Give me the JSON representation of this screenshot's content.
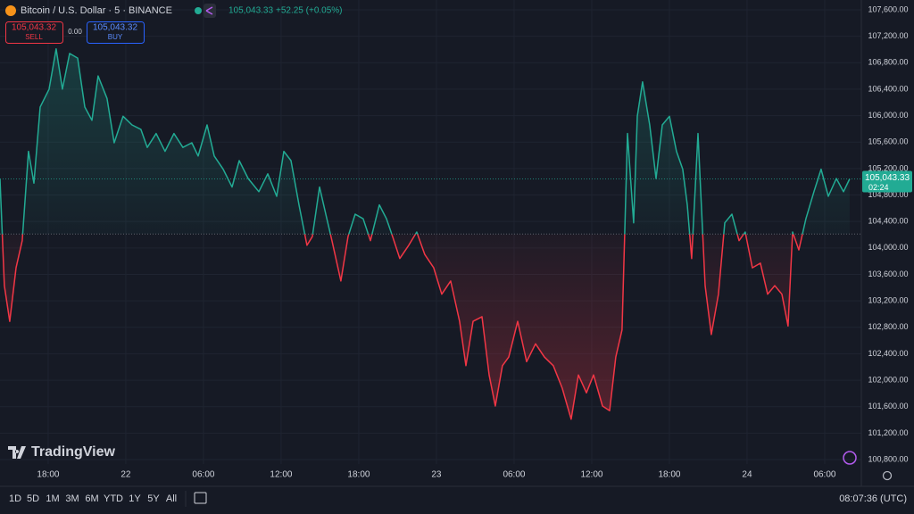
{
  "header": {
    "symbol": "Bitcoin / U.S. Dollar · 5 · BINANCE",
    "last": "105,043.33",
    "change": "+52.25 (+0.05%)"
  },
  "trade": {
    "sell_price": "105,043.32",
    "sell": "SELL",
    "spread": "0.00",
    "buy_price": "105,043.32",
    "buy": "BUY"
  },
  "chart_data": {
    "type": "baseline",
    "x": [
      -9.72,
      -9.38,
      -8.97,
      -8.48,
      -8.0,
      -7.52,
      -7.1,
      -6.62,
      -5.93,
      -5.38,
      -4.9,
      -4.34,
      -3.72,
      -3.17,
      -2.62,
      -2.14,
      -1.45,
      -0.9,
      -0.21,
      0.48,
      1.17,
      1.66,
      2.34,
      3.03,
      3.72,
      4.41,
      5.1,
      5.59,
      6.28,
      6.83,
      7.52,
      8.21,
      8.76,
      9.45,
      10.28,
      10.97,
      11.66,
      12.21,
      12.76,
      13.38,
      14.0,
      14.41,
      14.97,
      15.45,
      15.93,
      16.62,
      17.17,
      17.72,
      18.34,
      18.9,
      19.59,
      20.14,
      20.62,
      21.17,
      21.86,
      22.48,
      23.1,
      23.79,
      24.41,
      25.1,
      25.79,
      26.28,
      26.83,
      27.52,
      28.07,
      28.55,
      29.1,
      29.59,
      30.28,
      30.97,
      31.66,
      32.34,
      33.03,
      33.72,
      34.41,
      34.97,
      35.59,
      36.14,
      36.83,
      37.38,
      37.86,
      38.34,
      38.76,
      39.24,
      39.52,
      39.93,
      40.48,
      40.97,
      41.45,
      42.0,
      42.55,
      43.03,
      43.38,
      43.72,
      44.21,
      44.76,
      45.24,
      45.79,
      46.28,
      46.83,
      47.38,
      47.86,
      48.41,
      49.03,
      49.59,
      50.14,
      50.69,
      51.17,
      51.52,
      52.0,
      52.55,
      53.17,
      53.72,
      54.28,
      54.9,
      55.45,
      55.93
    ],
    "values": [
      105040,
      103430,
      102890,
      103700,
      104110,
      105460,
      104980,
      106130,
      106400,
      107010,
      106400,
      106940,
      106870,
      106130,
      105930,
      106600,
      106260,
      105590,
      105990,
      105860,
      105790,
      105520,
      105730,
      105460,
      105730,
      105520,
      105590,
      105390,
      105860,
      105390,
      105190,
      104920,
      105320,
      105050,
      104850,
      105120,
      104780,
      105460,
      105320,
      104650,
      104040,
      104170,
      104920,
      104510,
      104110,
      103500,
      104170,
      104510,
      104440,
      104110,
      104650,
      104440,
      104170,
      103840,
      104040,
      104240,
      103900,
      103700,
      103300,
      103500,
      102890,
      102220,
      102890,
      102960,
      102080,
      101610,
      102220,
      102350,
      102890,
      102280,
      102550,
      102350,
      102220,
      101880,
      101410,
      102080,
      101810,
      102080,
      101610,
      101540,
      102350,
      102760,
      105730,
      104380,
      105990,
      106510,
      105860,
      105050,
      105860,
      105990,
      105460,
      105190,
      104650,
      103840,
      105730,
      103430,
      102690,
      103300,
      104380,
      104510,
      104110,
      104240,
      103700,
      103770,
      103300,
      103430,
      103300,
      102820,
      104240,
      103970,
      104440,
      104850,
      105190,
      104780,
      105050,
      104850,
      105043.33
    ],
    "baseline": 104210,
    "color_up": "#22ab94",
    "color_down": "#f23645",
    "grid": true,
    "last_label": "105,043.33",
    "countdown": "02:24",
    "xlim": [
      -9.72,
      56.83
    ],
    "ylim": [
      100733,
      107748
    ],
    "xticks": [
      {
        "value": -6,
        "label": "18:00"
      },
      {
        "value": 0,
        "label": "22"
      },
      {
        "value": 6,
        "label": "06:00"
      },
      {
        "value": 12,
        "label": "12:00"
      },
      {
        "value": 18,
        "label": "18:00"
      },
      {
        "value": 24,
        "label": "23"
      },
      {
        "value": 30,
        "label": "06:00"
      },
      {
        "value": 36,
        "label": "12:00"
      },
      {
        "value": 42,
        "label": "18:00"
      },
      {
        "value": 48,
        "label": "24"
      },
      {
        "value": 54,
        "label": "06:00"
      }
    ],
    "yticks": [
      {
        "value": 100800,
        "label": "100,800.00"
      },
      {
        "value": 101200,
        "label": "101,200.00"
      },
      {
        "value": 101600,
        "label": "101,600.00"
      },
      {
        "value": 102000,
        "label": "102,000.00"
      },
      {
        "value": 102400,
        "label": "102,400.00"
      },
      {
        "value": 102800,
        "label": "102,800.00"
      },
      {
        "value": 103200,
        "label": "103,200.00"
      },
      {
        "value": 103600,
        "label": "103,600.00"
      },
      {
        "value": 104000,
        "label": "104,000.00"
      },
      {
        "value": 104400,
        "label": "104,400.00"
      },
      {
        "value": 104800,
        "label": "104,800.00"
      },
      {
        "value": 105200,
        "label": "105,200.00"
      },
      {
        "value": 105600,
        "label": "105,600.00"
      },
      {
        "value": 106000,
        "label": "106,000.00"
      },
      {
        "value": 106400,
        "label": "106,400.00"
      },
      {
        "value": 106800,
        "label": "106,800.00"
      },
      {
        "value": 107200,
        "label": "107,200.00"
      },
      {
        "value": 107600,
        "label": "107,600.00"
      }
    ]
  },
  "logo": "TradingView",
  "toolbar": {
    "ranges": [
      "1D",
      "5D",
      "1M",
      "3M",
      "6M",
      "YTD",
      "1Y",
      "5Y",
      "All"
    ],
    "clock": "08:07:36 (UTC)"
  }
}
